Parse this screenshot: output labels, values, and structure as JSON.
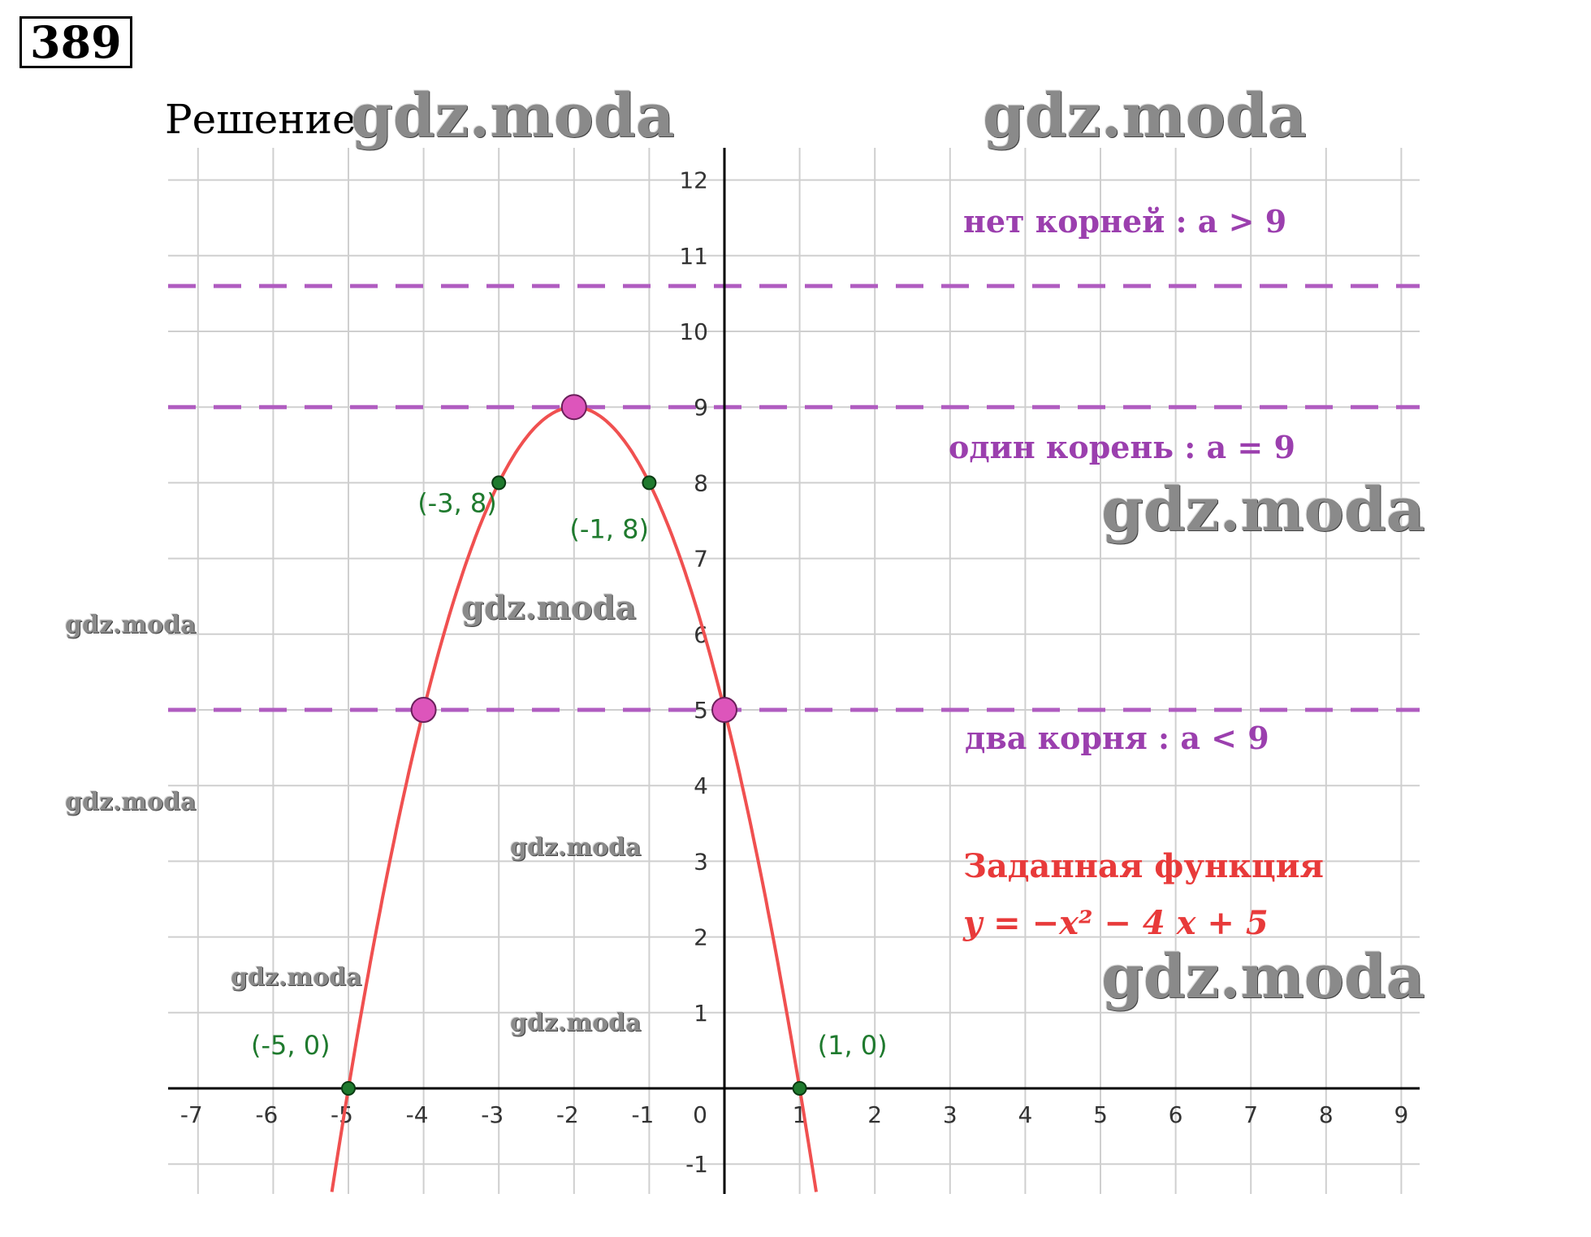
{
  "header": {
    "task_number": "389",
    "solution_label": "Решение:"
  },
  "watermarks": [
    "gdz.moda",
    "gdz.moda",
    "gdz.moda",
    "gdz.moda",
    "gdz.moda",
    "gdz.moda",
    "gdz.moda",
    "gdz.moda",
    "gdz.moda",
    "gdz.moda"
  ],
  "chart_data": {
    "type": "line",
    "function": "y = -x^2 - 4x + 5",
    "xlim": [
      -7.4,
      9.2
    ],
    "ylim": [
      -1.4,
      12.4
    ],
    "x_ticks": [
      -7,
      -6,
      -5,
      -4,
      -3,
      -2,
      -1,
      0,
      1,
      2,
      3,
      4,
      5,
      6,
      7,
      8,
      9
    ],
    "y_ticks": [
      -1,
      1,
      2,
      3,
      4,
      5,
      6,
      7,
      8,
      9,
      10,
      11,
      12
    ],
    "grid": true,
    "curve_color": "#f05050",
    "level_lines": [
      {
        "y": 10.6,
        "color": "#b05cc0"
      },
      {
        "y": 9,
        "color": "#b05cc0"
      },
      {
        "y": 5,
        "color": "#b05cc0"
      }
    ],
    "key_points": [
      {
        "x": -2,
        "y": 9
      },
      {
        "x": -4,
        "y": 5
      },
      {
        "x": 0,
        "y": 5
      }
    ],
    "labeled_points": [
      {
        "x": -3,
        "y": 8,
        "label": "(-3, 8)"
      },
      {
        "x": -1,
        "y": 8,
        "label": "(-1, 8)"
      },
      {
        "x": -5,
        "y": 0,
        "label": "(-5, 0)"
      },
      {
        "x": 1,
        "y": 0,
        "label": "(1, 0)"
      }
    ],
    "annotations": {
      "no_roots": "нет корней :  a > 9",
      "one_root": "один корень :  a = 9",
      "two_roots": "два корня :  a < 9",
      "given_function_title": "Заданная функция",
      "given_function_formula": "y = −x² − 4 x + 5"
    },
    "colors": {
      "point_green": "#1f7a2e",
      "label_green": "#1f7a2e",
      "key_point_fill": "#dd55bb",
      "annotation_purple": "#9b3fae",
      "function_red": "#e83a3a"
    }
  }
}
